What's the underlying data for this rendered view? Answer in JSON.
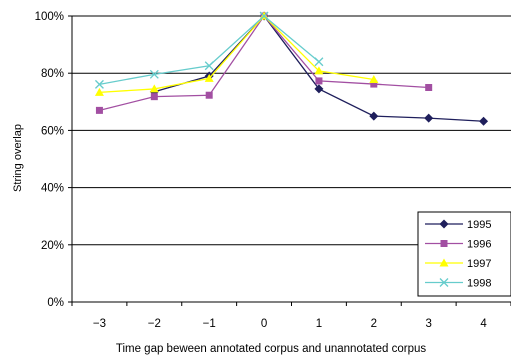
{
  "chart_data": {
    "type": "line",
    "xlabel": "Time gap beween annotated corpus and unannotated corpus",
    "ylabel": "String overlap",
    "x_ticks": [
      "−3",
      "−2",
      "−1",
      "0",
      "1",
      "2",
      "3",
      "4"
    ],
    "x_values": [
      -3,
      -2,
      -1,
      0,
      1,
      2,
      3,
      4
    ],
    "y_ticks": [
      "0%",
      "20%",
      "40%",
      "60%",
      "80%",
      "100%"
    ],
    "ylim": [
      0,
      100
    ],
    "xlim": [
      -3.5,
      4.5
    ],
    "grid": "horizontal",
    "legend_position": "bottom-right",
    "series": [
      {
        "name": "1995",
        "color": "#1f1f5c",
        "marker": "diamond",
        "points": [
          [
            -2,
            73.5
          ],
          [
            -1,
            79
          ],
          [
            0,
            100
          ],
          [
            1,
            74.5
          ],
          [
            2,
            65
          ],
          [
            3,
            64.3
          ],
          [
            4,
            63.2
          ]
        ]
      },
      {
        "name": "1996",
        "color": "#a24fa2",
        "marker": "square",
        "points": [
          [
            -3,
            67
          ],
          [
            -2,
            71.8
          ],
          [
            -1,
            72.3
          ],
          [
            0,
            100
          ],
          [
            1,
            77.3
          ],
          [
            2,
            76.2
          ],
          [
            3,
            75
          ]
        ]
      },
      {
        "name": "1997",
        "color": "#ffff00",
        "marker": "triangle",
        "points": [
          [
            -3,
            73.3
          ],
          [
            -2,
            74.5
          ],
          [
            -1,
            78.2
          ],
          [
            0,
            100
          ],
          [
            1,
            80.8
          ],
          [
            2,
            77.8
          ]
        ]
      },
      {
        "name": "1998",
        "color": "#66cccc",
        "marker": "x",
        "points": [
          [
            -3,
            76.1
          ],
          [
            -2,
            79.6
          ],
          [
            -1,
            82.6
          ],
          [
            0,
            100
          ],
          [
            1,
            84
          ]
        ]
      }
    ]
  }
}
